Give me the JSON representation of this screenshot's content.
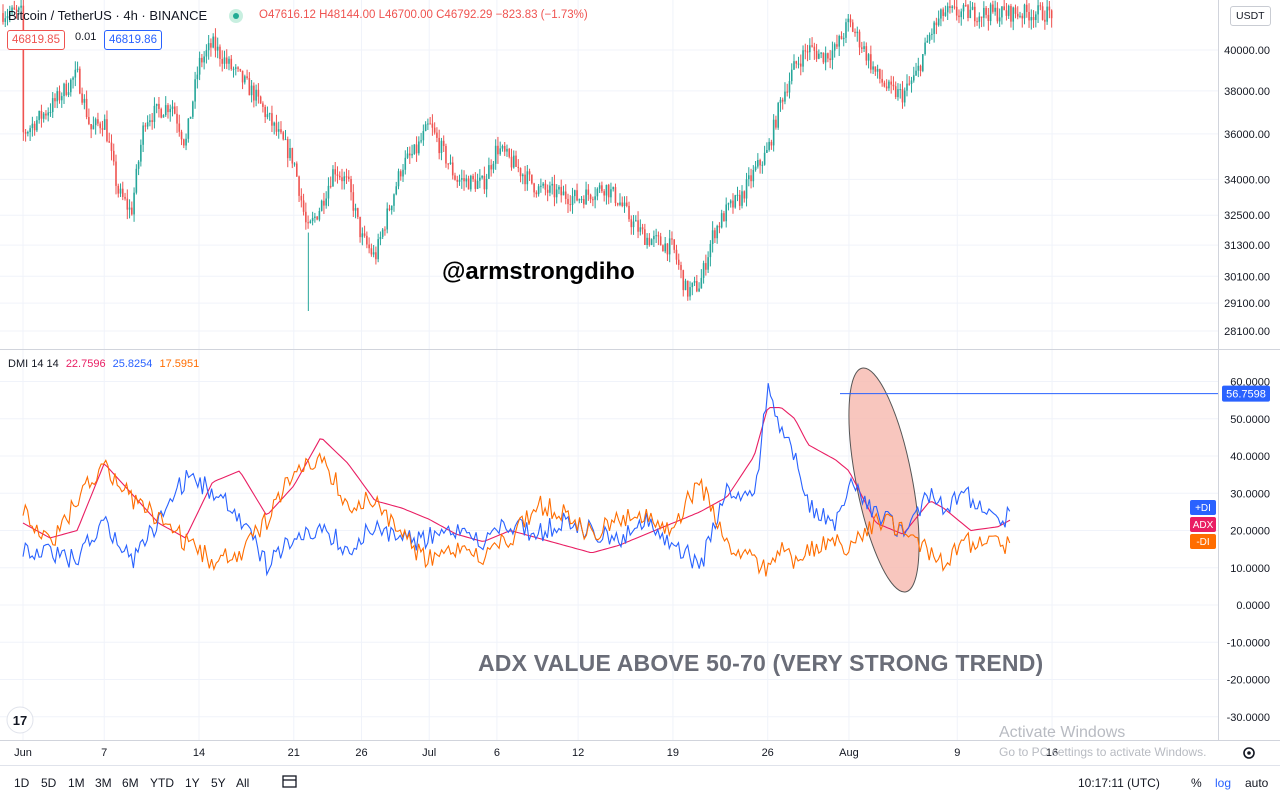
{
  "header": {
    "symbol": "Bitcoin / TetherUS · 4h · BINANCE",
    "ohlc": "O47616.12 H48144.00 L46700.00 C46792.29 −823.83 (−1.73%)",
    "sell_price": "46819.85",
    "spread": "0.01",
    "buy_price": "46819.86",
    "currency": "USDT"
  },
  "indicator": {
    "name": "DMI 14 14",
    "adx_value": "22.7596",
    "plus_di_value": "25.8254",
    "minus_di_value": "17.5951",
    "adx_label": "ADX",
    "plus_di_label": "+DI",
    "minus_di_label": "-DI",
    "marker_value": "56.7598"
  },
  "annotations": {
    "watermark": "@armstrongdiho",
    "note": "ADX VALUE ABOVE 50-70 (VERY STRONG TREND)"
  },
  "windows_notice": {
    "line1": "Activate Windows",
    "line2": "Go to PC settings to activate Windows."
  },
  "toolbar": {
    "ranges": [
      "1D",
      "5D",
      "1M",
      "3M",
      "6M",
      "YTD",
      "1Y",
      "5Y",
      "All"
    ],
    "time": "10:17:11 (UTC)",
    "percent": "%",
    "log": "log",
    "auto": "auto"
  },
  "colors": {
    "up": "#26a69a",
    "down": "#ef5350",
    "adx": "#e91e63",
    "plus_di": "#2962ff",
    "minus_di": "#ff6d00",
    "ellipse_fill": "#f6b8ae",
    "grid": "#f0f3fa"
  },
  "chart_data": [
    {
      "type": "candlestick",
      "title": "Bitcoin / TetherUS 4h BINANCE",
      "y_tick_labels": [
        "28100.00",
        "29100.00",
        "30100.00",
        "31300.00",
        "32500.00",
        "34000.00",
        "36000.00",
        "38000.00",
        "40000.00"
      ],
      "y_ticks": [
        28100,
        29100,
        30100,
        31300,
        32500,
        34000,
        36000,
        38000,
        40000
      ],
      "log_scale": true,
      "x_tick_labels": [
        "Jun",
        "7",
        "14",
        "21",
        "26",
        "Jul",
        "6",
        "12",
        "19",
        "26",
        "Aug",
        "9",
        "16"
      ],
      "close_path": [
        [
          "Jun 1",
          36000
        ],
        [
          "Jun 3",
          37200
        ],
        [
          "Jun 5",
          38800
        ],
        [
          "Jun 6",
          36200
        ],
        [
          "Jun 7",
          36600
        ],
        [
          "Jun 8",
          33500
        ],
        [
          "Jun 9",
          32600
        ],
        [
          "Jun 10",
          36700
        ],
        [
          "Jun 12",
          37400
        ],
        [
          "Jun 13",
          35500
        ],
        [
          "Jun 14",
          39300
        ],
        [
          "Jun 15",
          40300
        ],
        [
          "Jun 16",
          39400
        ],
        [
          "Jun 18",
          37900
        ],
        [
          "Jun 20",
          35800
        ],
        [
          "Jun 21",
          34800
        ],
        [
          "Jun 22",
          31800
        ],
        [
          "Jun 23",
          32900
        ],
        [
          "Jun 24",
          34500
        ],
        [
          "Jun 25",
          33800
        ],
        [
          "Jun 26",
          31600
        ],
        [
          "Jun 27",
          30800
        ],
        [
          "Jun 29",
          34600
        ],
        [
          "Jun 30",
          35200
        ],
        [
          "Jul 1",
          36400
        ],
        [
          "Jul 3",
          34000
        ],
        [
          "Jul 5",
          33800
        ],
        [
          "Jul 6",
          35400
        ],
        [
          "Jul 7",
          34800
        ],
        [
          "Jul 9",
          33600
        ],
        [
          "Jul 12",
          33200
        ],
        [
          "Jul 14",
          33700
        ],
        [
          "Jul 15",
          33100
        ],
        [
          "Jul 16",
          32200
        ],
        [
          "Jul 17",
          31600
        ],
        [
          "Jul 18",
          31400
        ],
        [
          "Jul 19",
          31200
        ],
        [
          "Jul 20",
          29500
        ],
        [
          "Jul 21",
          29800
        ],
        [
          "Jul 22",
          31800
        ],
        [
          "Jul 23",
          32700
        ],
        [
          "Jul 24",
          33200
        ],
        [
          "Jul 25",
          34300
        ],
        [
          "Jul 26",
          35200
        ],
        [
          "Jul 27",
          37600
        ],
        [
          "Jul 28",
          39200
        ],
        [
          "Jul 29",
          40100
        ],
        [
          "Jul 30",
          39700
        ],
        [
          "Jul 31",
          40000
        ],
        [
          "Aug 1",
          41400
        ],
        [
          "Aug 2",
          40200
        ],
        [
          "Aug 3",
          38800
        ],
        [
          "Aug 4",
          38000
        ],
        [
          "Aug 5",
          37800
        ],
        [
          "Aug 6",
          38800
        ],
        [
          "Aug 7",
          40800
        ],
        [
          "Aug 8",
          41900
        ]
      ]
    },
    {
      "type": "line",
      "title": "DMI 14 14",
      "y_tick_labels": [
        "-30.0000",
        "-20.0000",
        "-10.0000",
        "0.0000",
        "10.0000",
        "20.0000",
        "30.0000",
        "40.0000",
        "50.0000",
        "60.0000"
      ],
      "ylim": [
        -30,
        60
      ],
      "series": [
        {
          "name": "ADX",
          "color": "#e91e63",
          "points": [
            [
              "Jun 1",
              22
            ],
            [
              "Jun 3",
              18
            ],
            [
              "Jun 5",
              20
            ],
            [
              "Jun 7",
              38
            ],
            [
              "Jun 9",
              30
            ],
            [
              "Jun 11",
              22
            ],
            [
              "Jun 13",
              18
            ],
            [
              "Jun 15",
              33
            ],
            [
              "Jun 17",
              36
            ],
            [
              "Jun 19",
              24
            ],
            [
              "Jun 21",
              32
            ],
            [
              "Jun 23",
              45
            ],
            [
              "Jun 25",
              38
            ],
            [
              "Jun 27",
              28
            ],
            [
              "Jun 29",
              26
            ],
            [
              "Jul 1",
              23
            ],
            [
              "Jul 3",
              19
            ],
            [
              "Jul 5",
              17
            ],
            [
              "Jul 7",
              20
            ],
            [
              "Jul 9",
              18
            ],
            [
              "Jul 11",
              16
            ],
            [
              "Jul 13",
              14
            ],
            [
              "Jul 15",
              16
            ],
            [
              "Jul 17",
              19
            ],
            [
              "Jul 19",
              22
            ],
            [
              "Jul 21",
              25
            ],
            [
              "Jul 23",
              29
            ],
            [
              "Jul 25",
              40
            ],
            [
              "Jul 26",
              53
            ],
            [
              "Jul 27",
              53
            ],
            [
              "Jul 28",
              50
            ],
            [
              "Jul 29",
              43
            ],
            [
              "Jul 31",
              39
            ],
            [
              "Aug 1",
              36
            ],
            [
              "Aug 3",
              22
            ],
            [
              "Aug 5",
              19
            ],
            [
              "Aug 7",
              28
            ],
            [
              "Aug 8",
              26
            ],
            [
              "Aug 10",
              20
            ],
            [
              "Aug 12",
              21
            ],
            [
              "Aug 13",
              23
            ]
          ]
        },
        {
          "name": "+DI",
          "color": "#2962ff",
          "points": [
            [
              "Jun 1",
              16
            ],
            [
              "Jun 3",
              14
            ],
            [
              "Jun 5",
              12
            ],
            [
              "Jun 7",
              23
            ],
            [
              "Jun 9",
              11
            ],
            [
              "Jun 11",
              22
            ],
            [
              "Jun 13",
              34
            ],
            [
              "Jun 15",
              31
            ],
            [
              "Jun 17",
              23
            ],
            [
              "Jun 19",
              11
            ],
            [
              "Jun 21",
              17
            ],
            [
              "Jun 23",
              22
            ],
            [
              "Jun 25",
              14
            ],
            [
              "Jun 27",
              22
            ],
            [
              "Jun 29",
              17
            ],
            [
              "Jul 1",
              18
            ],
            [
              "Jul 3",
              21
            ],
            [
              "Jul 5",
              17
            ],
            [
              "Jul 7",
              22
            ],
            [
              "Jul 9",
              19
            ],
            [
              "Jul 11",
              22
            ],
            [
              "Jul 13",
              20
            ],
            [
              "Jul 15",
              18
            ],
            [
              "Jul 17",
              22
            ],
            [
              "Jul 19",
              17
            ],
            [
              "Jul 21",
              10
            ],
            [
              "Jul 23",
              31
            ],
            [
              "Jul 25",
              29
            ],
            [
              "Jul 26",
              57
            ],
            [
              "Jul 27",
              46
            ],
            [
              "Jul 28",
              40
            ],
            [
              "Jul 29",
              26
            ],
            [
              "Jul 31",
              22
            ],
            [
              "Aug 1",
              34
            ],
            [
              "Aug 3",
              25
            ],
            [
              "Aug 5",
              19
            ],
            [
              "Aug 7",
              30
            ],
            [
              "Aug 8",
              27
            ],
            [
              "Aug 10",
              29
            ],
            [
              "Aug 12",
              21
            ],
            [
              "Aug 13",
              26
            ]
          ]
        },
        {
          "name": "-DI",
          "color": "#ff6d00",
          "points": [
            [
              "Jun 1",
              27
            ],
            [
              "Jun 3",
              16
            ],
            [
              "Jun 5",
              28
            ],
            [
              "Jun 7",
              38
            ],
            [
              "Jun 9",
              28
            ],
            [
              "Jun 11",
              23
            ],
            [
              "Jun 13",
              17
            ],
            [
              "Jun 15",
              12
            ],
            [
              "Jun 17",
              13
            ],
            [
              "Jun 19",
              23
            ],
            [
              "Jun 21",
              35
            ],
            [
              "Jun 23",
              41
            ],
            [
              "Jun 25",
              26
            ],
            [
              "Jun 27",
              29
            ],
            [
              "Jun 29",
              18
            ],
            [
              "Jul 1",
              12
            ],
            [
              "Jul 3",
              16
            ],
            [
              "Jul 5",
              13
            ],
            [
              "Jul 7",
              18
            ],
            [
              "Jul 9",
              27
            ],
            [
              "Jul 11",
              24
            ],
            [
              "Jul 13",
              19
            ],
            [
              "Jul 15",
              24
            ],
            [
              "Jul 17",
              23
            ],
            [
              "Jul 19",
              21
            ],
            [
              "Jul 21",
              33
            ],
            [
              "Jul 23",
              16
            ],
            [
              "Jul 25",
              13
            ],
            [
              "Jul 26",
              8
            ],
            [
              "Jul 27",
              15
            ],
            [
              "Jul 28",
              11
            ],
            [
              "Jul 29",
              14
            ],
            [
              "Jul 31",
              18
            ],
            [
              "Aug 1",
              16
            ],
            [
              "Aug 3",
              23
            ],
            [
              "Aug 5",
              20
            ],
            [
              "Aug 7",
              14
            ],
            [
              "Aug 8",
              12
            ],
            [
              "Aug 10",
              17
            ],
            [
              "Aug 12",
              16
            ],
            [
              "Aug 13",
              17
            ]
          ]
        }
      ]
    }
  ]
}
